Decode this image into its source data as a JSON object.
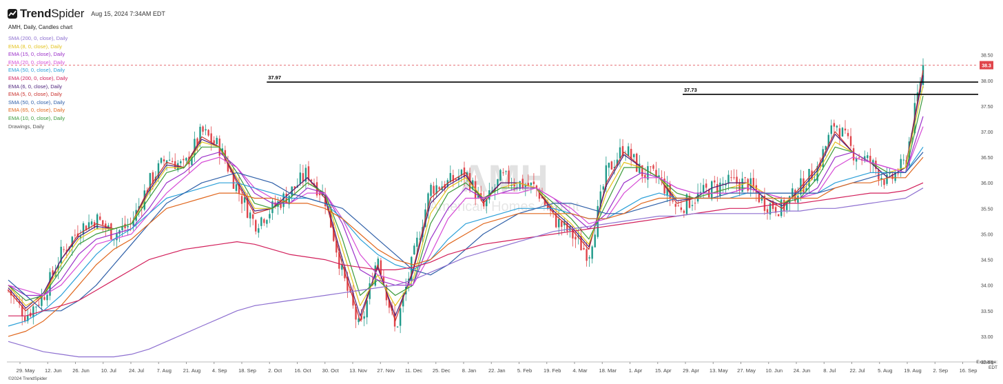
{
  "header": {
    "brand_prefix": "Trend",
    "brand_suffix": "Spider",
    "timestamp": "Aug 15, 2024 7:34AM EDT",
    "brand_color": "#1a1a1a"
  },
  "title_line": "AMH, Daily, Candles chart",
  "legend": [
    {
      "label": "SMA (200, 0, close), Daily",
      "color": "#8d6fd0"
    },
    {
      "label": "EMA (8, 0, close), Daily",
      "color": "#e3c21c"
    },
    {
      "label": "EMA (15, 0, close), Daily",
      "color": "#9b30c9"
    },
    {
      "label": "EMA (20, 0, close), Daily",
      "color": "#d64bd6"
    },
    {
      "label": "EMA (50, 0, close), Daily",
      "color": "#2a9fd8"
    },
    {
      "label": "EMA (200, 0, close), Daily",
      "color": "#d21e5a"
    },
    {
      "label": "EMA (6, 0, close), Daily",
      "color": "#4a1f7a"
    },
    {
      "label": "EMA (5, 0, close), Daily",
      "color": "#c9302c"
    },
    {
      "label": "SMA (50, 0, close), Daily",
      "color": "#2e5fa8"
    },
    {
      "label": "EMA (65, 0, close), Daily",
      "color": "#e0661c"
    },
    {
      "label": "EMA (10, 0, close), Daily",
      "color": "#3a9a3a"
    },
    {
      "label": "Drawings, Daily",
      "color": "#555555"
    }
  ],
  "watermark": {
    "symbol": "AMH",
    "name": "American Homes 4 Rent"
  },
  "exchange": {
    "line1": "Exchange:",
    "line2": "EDT"
  },
  "copyright": "©2024 TrendSpider",
  "chart_data": {
    "type": "candlestick",
    "ylim": [
      32.5,
      38.9
    ],
    "y_ticks": [
      "38.50",
      "38.00",
      "37.50",
      "37.00",
      "36.50",
      "36.00",
      "35.50",
      "35.00",
      "34.50",
      "34.00",
      "33.50",
      "33.00",
      "32.50"
    ],
    "x_ticks": [
      "29. May",
      "12. Jun",
      "26. Jun",
      "10. Jul",
      "24. Jul",
      "7. Aug",
      "21. Aug",
      "4. Sep",
      "18. Sep",
      "2. Oct",
      "16. Oct",
      "30. Oct",
      "13. Nov",
      "27. Nov",
      "11. Dec",
      "25. Dec",
      "8. Jan",
      "22. Jan",
      "5. Feb",
      "19. Feb",
      "4. Mar",
      "18. Mar",
      "1. Apr",
      "15. Apr",
      "29. Apr",
      "13. May",
      "27. May",
      "10. Jun",
      "24. Jun",
      "8. Jul",
      "22. Jul",
      "5. Aug",
      "19. Aug",
      "2. Sep",
      "16. Sep"
    ],
    "up_color": "#1f9a8a",
    "down_color": "#e0454b",
    "last_price": {
      "value": 38.3,
      "label": "38.3",
      "color": "#e0454b"
    },
    "levels": [
      {
        "value": 37.97,
        "label": "37.97",
        "start_tick": 9
      },
      {
        "value": 37.73,
        "label": "37.73",
        "start_tick": 24
      }
    ],
    "close_path": [
      33.9,
      33.4,
      33.8,
      34.6,
      35.1,
      35.3,
      35.0,
      35.2,
      36.0,
      36.5,
      36.3,
      37.0,
      36.7,
      35.9,
      35.2,
      35.5,
      35.8,
      36.2,
      35.7,
      34.2,
      33.1,
      34.6,
      33.1,
      34.5,
      35.9,
      36.0,
      36.2,
      35.5,
      36.1,
      36.0,
      35.9,
      35.3,
      35.0,
      34.6,
      36.2,
      36.7,
      36.2,
      36.1,
      35.5,
      35.7,
      35.9,
      36.0,
      36.0,
      35.6,
      35.5,
      35.9,
      36.3,
      37.2,
      36.6,
      36.4,
      36.0,
      36.4,
      38.3
    ],
    "ma_paths": {
      "EMA (5, 0, close), Daily": [
        33.9,
        33.5,
        33.8,
        34.5,
        35.0,
        35.2,
        35.1,
        35.2,
        35.9,
        36.4,
        36.3,
        36.9,
        36.7,
        36.0,
        35.4,
        35.5,
        35.8,
        36.1,
        35.7,
        34.4,
        33.3,
        34.4,
        33.3,
        34.3,
        35.7,
        36.0,
        36.2,
        35.6,
        36.0,
        36.0,
        35.9,
        35.4,
        35.1,
        34.7,
        36.0,
        36.6,
        36.3,
        36.1,
        35.6,
        35.7,
        35.9,
        36.0,
        36.0,
        35.7,
        35.5,
        35.9,
        36.3,
        37.0,
        36.6,
        36.4,
        36.1,
        36.3,
        38.2
      ],
      "EMA (6, 0, close), Daily": [
        33.95,
        33.55,
        33.85,
        34.5,
        34.95,
        35.15,
        35.1,
        35.2,
        35.85,
        36.35,
        36.3,
        36.85,
        36.7,
        36.05,
        35.45,
        35.5,
        35.8,
        36.1,
        35.75,
        34.5,
        33.4,
        34.35,
        33.4,
        34.25,
        35.6,
        35.95,
        36.15,
        35.65,
        36.0,
        36.0,
        35.9,
        35.45,
        35.15,
        34.75,
        35.95,
        36.55,
        36.3,
        36.1,
        35.65,
        35.7,
        35.9,
        36.0,
        36.0,
        35.7,
        35.55,
        35.85,
        36.25,
        36.95,
        36.6,
        36.4,
        36.1,
        36.3,
        38.1
      ],
      "EMA (8, 0, close), Daily": [
        34.0,
        33.6,
        33.8,
        34.4,
        34.9,
        35.1,
        35.1,
        35.2,
        35.8,
        36.3,
        36.3,
        36.8,
        36.7,
        36.1,
        35.5,
        35.5,
        35.7,
        36.0,
        35.8,
        34.7,
        33.6,
        34.2,
        33.6,
        34.1,
        35.4,
        35.9,
        36.1,
        35.7,
        35.9,
        36.0,
        35.9,
        35.5,
        35.2,
        34.8,
        35.8,
        36.4,
        36.3,
        36.1,
        35.7,
        35.7,
        35.8,
        35.9,
        36.0,
        35.8,
        35.6,
        35.8,
        36.2,
        36.8,
        36.6,
        36.4,
        36.2,
        36.3,
        37.9
      ],
      "EMA (10, 0, close), Daily": [
        34.0,
        33.7,
        33.8,
        34.3,
        34.8,
        35.0,
        35.1,
        35.2,
        35.7,
        36.2,
        36.3,
        36.7,
        36.7,
        36.2,
        35.6,
        35.5,
        35.7,
        36.0,
        35.8,
        34.9,
        33.8,
        34.1,
        33.8,
        34.0,
        35.2,
        35.8,
        36.0,
        35.7,
        35.9,
        35.9,
        35.9,
        35.6,
        35.3,
        34.9,
        35.6,
        36.3,
        36.3,
        36.1,
        35.8,
        35.7,
        35.8,
        35.9,
        35.9,
        35.8,
        35.6,
        35.7,
        36.1,
        36.7,
        36.6,
        36.4,
        36.2,
        36.2,
        37.7
      ],
      "EMA (15, 0, close), Daily": [
        34.0,
        33.8,
        33.8,
        34.1,
        34.6,
        34.9,
        35.0,
        35.1,
        35.5,
        36.0,
        36.2,
        36.5,
        36.6,
        36.3,
        35.8,
        35.6,
        35.6,
        35.9,
        35.8,
        35.2,
        34.3,
        34.1,
        34.0,
        34.0,
        34.9,
        35.5,
        35.9,
        35.7,
        35.8,
        35.9,
        35.9,
        35.7,
        35.4,
        35.1,
        35.4,
        36.0,
        36.2,
        36.1,
        35.9,
        35.8,
        35.8,
        35.8,
        35.9,
        35.8,
        35.7,
        35.7,
        35.9,
        36.5,
        36.6,
        36.4,
        36.3,
        36.2,
        37.3
      ],
      "EMA (20, 0, close), Daily": [
        34.0,
        33.9,
        33.8,
        34.0,
        34.4,
        34.8,
        34.9,
        35.0,
        35.4,
        35.8,
        36.1,
        36.4,
        36.5,
        36.3,
        35.9,
        35.7,
        35.6,
        35.8,
        35.8,
        35.3,
        34.6,
        34.2,
        34.1,
        34.0,
        34.6,
        35.3,
        35.7,
        35.7,
        35.8,
        35.8,
        35.9,
        35.7,
        35.5,
        35.2,
        35.3,
        35.8,
        36.1,
        36.1,
        35.9,
        35.8,
        35.8,
        35.8,
        35.9,
        35.8,
        35.7,
        35.7,
        35.8,
        36.3,
        36.5,
        36.4,
        36.3,
        36.2,
        37.1
      ],
      "EMA (50, 0, close), Daily": [
        33.2,
        33.3,
        33.5,
        33.8,
        34.2,
        34.6,
        34.9,
        35.1,
        35.4,
        35.7,
        35.8,
        35.9,
        36.0,
        36.0,
        35.9,
        35.8,
        35.7,
        35.7,
        35.6,
        35.3,
        34.9,
        34.6,
        34.4,
        34.3,
        34.5,
        34.9,
        35.2,
        35.3,
        35.4,
        35.5,
        35.5,
        35.5,
        35.4,
        35.3,
        35.3,
        35.5,
        35.7,
        35.8,
        35.7,
        35.7,
        35.7,
        35.7,
        35.8,
        35.8,
        35.8,
        35.8,
        35.8,
        36.0,
        36.1,
        36.2,
        36.2,
        36.2,
        36.7
      ],
      "SMA (50, 0, close), Daily": [
        34.1,
        33.8,
        33.5,
        33.5,
        33.7,
        34.0,
        34.4,
        34.8,
        35.2,
        35.6,
        35.8,
        36.0,
        36.1,
        36.2,
        36.1,
        36.0,
        35.8,
        35.7,
        35.6,
        35.5,
        35.2,
        34.9,
        34.6,
        34.3,
        34.2,
        34.4,
        34.7,
        35.0,
        35.2,
        35.4,
        35.5,
        35.6,
        35.6,
        35.5,
        35.4,
        35.4,
        35.5,
        35.6,
        35.7,
        35.7,
        35.7,
        35.8,
        35.8,
        35.8,
        35.8,
        35.8,
        35.8,
        35.9,
        36.0,
        36.1,
        36.2,
        36.2,
        36.6
      ],
      "EMA (65, 0, close), Daily": [
        33.0,
        33.1,
        33.3,
        33.6,
        34.0,
        34.4,
        34.7,
        34.9,
        35.2,
        35.5,
        35.6,
        35.7,
        35.8,
        35.8,
        35.7,
        35.7,
        35.6,
        35.6,
        35.5,
        35.3,
        35.0,
        34.7,
        34.5,
        34.4,
        34.5,
        34.8,
        35.0,
        35.2,
        35.3,
        35.4,
        35.4,
        35.4,
        35.4,
        35.3,
        35.3,
        35.4,
        35.6,
        35.7,
        35.7,
        35.7,
        35.7,
        35.7,
        35.7,
        35.7,
        35.7,
        35.7,
        35.7,
        35.9,
        36.0,
        36.0,
        36.1,
        36.1,
        36.5
      ],
      "EMA (200, 0, close), Daily": [
        33.4,
        33.4,
        33.5,
        33.6,
        33.7,
        33.9,
        34.1,
        34.3,
        34.5,
        34.6,
        34.7,
        34.75,
        34.8,
        34.85,
        34.8,
        34.7,
        34.6,
        34.55,
        34.5,
        34.4,
        34.35,
        34.3,
        34.3,
        34.35,
        34.45,
        34.6,
        34.7,
        34.8,
        34.85,
        34.9,
        34.95,
        35.0,
        35.05,
        35.1,
        35.15,
        35.2,
        35.25,
        35.3,
        35.35,
        35.4,
        35.45,
        35.5,
        35.5,
        35.55,
        35.6,
        35.6,
        35.65,
        35.7,
        35.75,
        35.8,
        35.8,
        35.85,
        36.0
      ],
      "SMA (200, 0, close), Daily": [
        32.9,
        32.8,
        32.7,
        32.65,
        32.6,
        32.6,
        32.6,
        32.65,
        32.75,
        32.9,
        33.05,
        33.2,
        33.35,
        33.5,
        33.6,
        33.65,
        33.7,
        33.75,
        33.8,
        33.85,
        33.9,
        33.95,
        34.0,
        34.1,
        34.25,
        34.4,
        34.55,
        34.65,
        34.75,
        34.85,
        34.95,
        35.05,
        35.1,
        35.15,
        35.2,
        35.25,
        35.3,
        35.35,
        35.35,
        35.4,
        35.4,
        35.4,
        35.4,
        35.4,
        35.45,
        35.45,
        35.5,
        35.5,
        35.55,
        35.6,
        35.65,
        35.7,
        35.9
      ]
    }
  }
}
